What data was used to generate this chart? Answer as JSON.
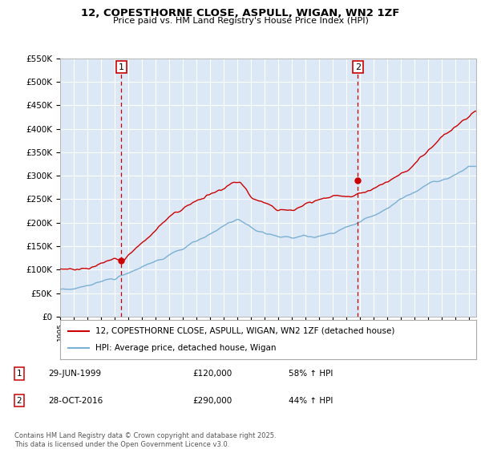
{
  "title": "12, COPESTHORNE CLOSE, ASPULL, WIGAN, WN2 1ZF",
  "subtitle": "Price paid vs. HM Land Registry's House Price Index (HPI)",
  "red_label": "12, COPESTHORNE CLOSE, ASPULL, WIGAN, WN2 1ZF (detached house)",
  "blue_label": "HPI: Average price, detached house, Wigan",
  "sale1_date": "29-JUN-1999",
  "sale1_price": 120000,
  "sale1_pct": "58% ↑ HPI",
  "sale1_year": 1999.49,
  "sale2_date": "28-OCT-2016",
  "sale2_price": 290000,
  "sale2_pct": "44% ↑ HPI",
  "sale2_year": 2016.82,
  "ylim": [
    0,
    550000
  ],
  "xlim_start": 1995.0,
  "xlim_end": 2025.5,
  "footer": "Contains HM Land Registry data © Crown copyright and database right 2025.\nThis data is licensed under the Open Government Licence v3.0.",
  "bg_color": "#ffffff",
  "plot_bg_color": "#dce8f5",
  "grid_color": "#ffffff",
  "red_color": "#cc0000",
  "blue_color": "#7ab0d4",
  "dashed_color": "#cc0000"
}
